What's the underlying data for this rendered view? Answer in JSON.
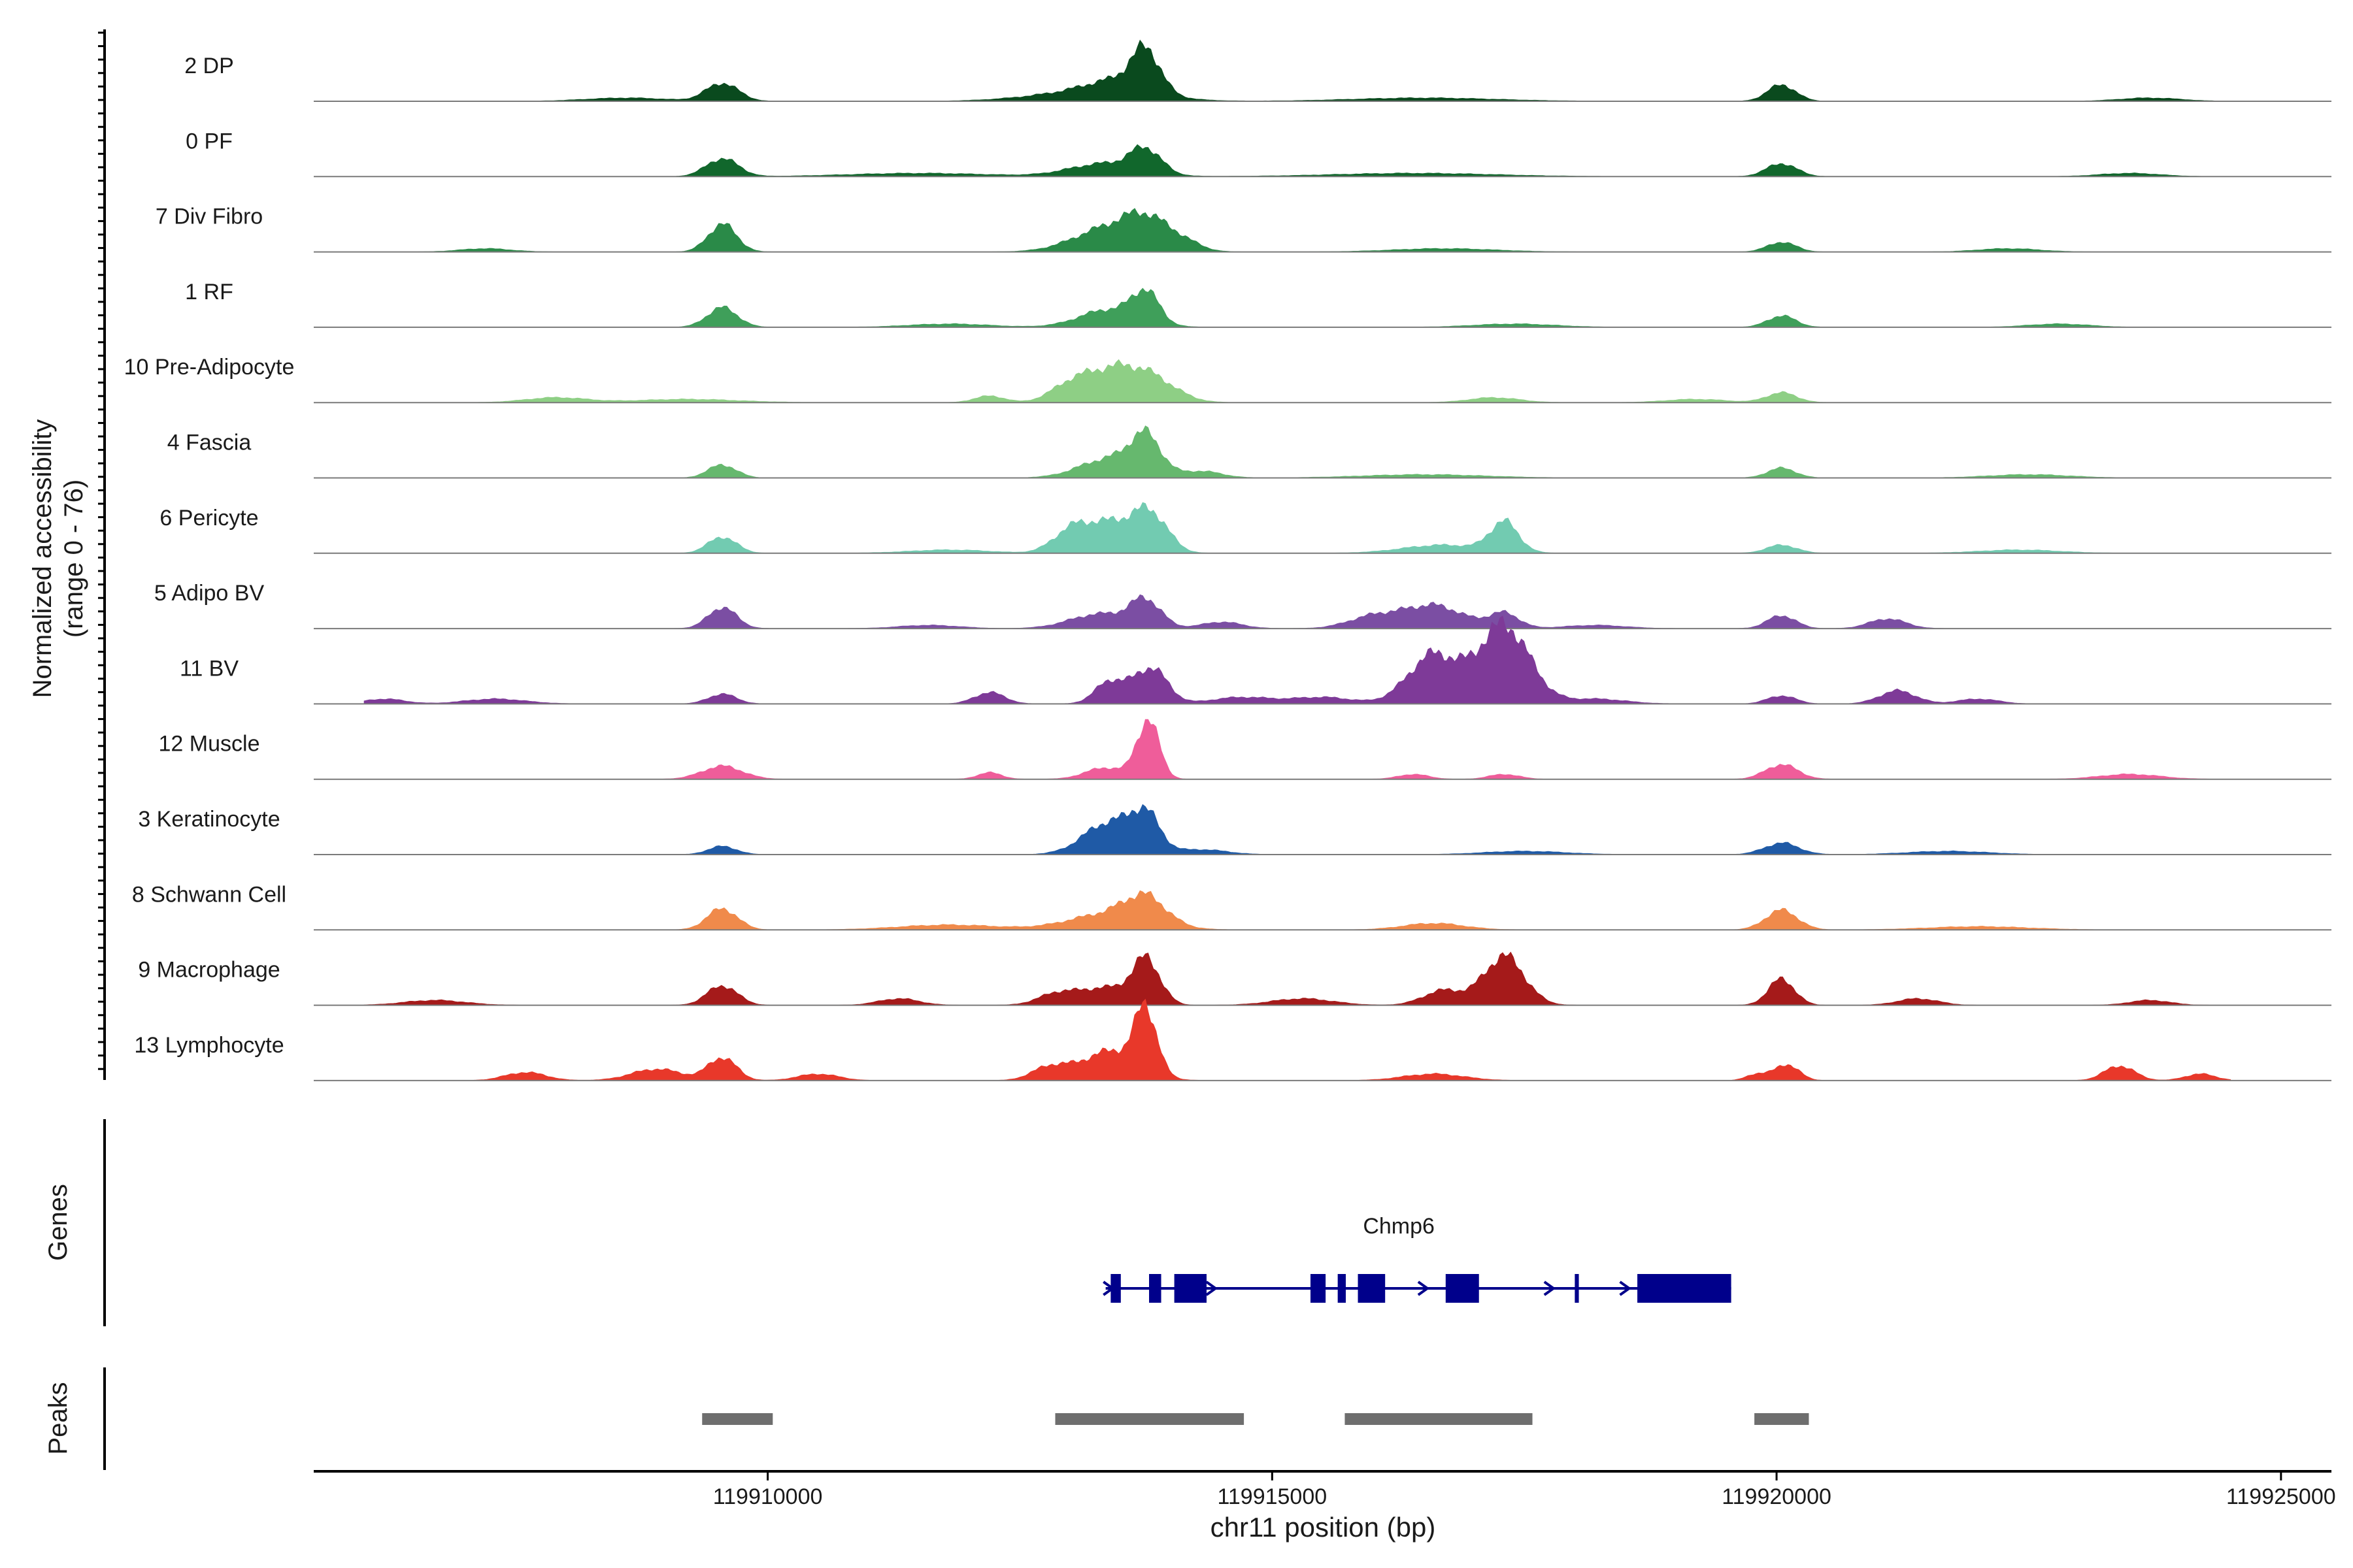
{
  "chart_data": {
    "type": "area",
    "ylabel_line1": "Normalized accessibility",
    "ylabel_line2": "(range 0 - 76)",
    "ylim": [
      0,
      76
    ],
    "xlabel": "chr11 position (bp)",
    "xlim": [
      119905500,
      119925500
    ],
    "x_ticks": [
      119910000,
      119915000,
      119920000,
      119925000
    ],
    "x_tick_labels": [
      "119910000",
      "119915000",
      "119920000",
      "119925000"
    ],
    "series": [
      {
        "name": "2 DP",
        "color": "#0a4a1e",
        "peaks": [
          [
            119909550,
            11,
            160
          ],
          [
            119913200,
            6,
            550
          ],
          [
            119913750,
            24,
            140
          ],
          [
            119913500,
            8,
            300
          ],
          [
            119920050,
            10,
            140
          ],
          [
            119908600,
            2,
            400
          ],
          [
            119916500,
            2,
            700
          ],
          [
            119923700,
            2,
            300
          ]
        ]
      },
      {
        "name": "0 PF",
        "color": "#11672c",
        "peaks": [
          [
            119909550,
            11,
            160
          ],
          [
            119913350,
            8,
            350
          ],
          [
            119913750,
            14,
            150
          ],
          [
            119920050,
            8,
            150
          ],
          [
            119911500,
            2,
            700
          ],
          [
            119916400,
            2,
            800
          ],
          [
            119923500,
            2,
            300
          ]
        ]
      },
      {
        "name": "7 Div Fibro",
        "color": "#2a8a48",
        "peaks": [
          [
            119909550,
            17,
            140
          ],
          [
            119913400,
            15,
            350
          ],
          [
            119913750,
            14,
            200
          ],
          [
            119914100,
            6,
            180
          ],
          [
            119920050,
            6,
            140
          ],
          [
            119907200,
            2,
            250
          ],
          [
            119916700,
            2,
            500
          ],
          [
            119922300,
            2,
            300
          ]
        ]
      },
      {
        "name": "1 RF",
        "color": "#3f9f5a",
        "peaks": [
          [
            119909550,
            12,
            150
          ],
          [
            119913400,
            11,
            300
          ],
          [
            119913750,
            18,
            130
          ],
          [
            119920050,
            7,
            140
          ],
          [
            119911800,
            2,
            400
          ],
          [
            119917400,
            2,
            400
          ],
          [
            119922800,
            2,
            300
          ]
        ]
      },
      {
        "name": "10 Pre-Adipocyte",
        "color": "#8ecf85",
        "peaks": [
          [
            119913000,
            10,
            200
          ],
          [
            119913400,
            17,
            250
          ],
          [
            119913800,
            14,
            250
          ],
          [
            119920050,
            6,
            150
          ],
          [
            119907900,
            3,
            300
          ],
          [
            119912200,
            4,
            150
          ],
          [
            119917200,
            3,
            250
          ],
          [
            119919200,
            2,
            300
          ],
          [
            119909200,
            2,
            500
          ]
        ]
      },
      {
        "name": "4 Fascia",
        "color": "#66b86e",
        "peaks": [
          [
            119909550,
            8,
            140
          ],
          [
            119913400,
            12,
            300
          ],
          [
            119913750,
            22,
            150
          ],
          [
            119914300,
            4,
            200
          ],
          [
            119920050,
            6,
            140
          ],
          [
            119916500,
            2,
            600
          ],
          [
            119922500,
            2,
            400
          ]
        ]
      },
      {
        "name": "6 Pericyte",
        "color": "#72cbb1",
        "peaks": [
          [
            119909550,
            10,
            140
          ],
          [
            119913000,
            12,
            180
          ],
          [
            119913400,
            18,
            250
          ],
          [
            119913800,
            22,
            170
          ],
          [
            119917300,
            18,
            140
          ],
          [
            119916700,
            5,
            400
          ],
          [
            119920050,
            5,
            150
          ],
          [
            119911800,
            2,
            400
          ],
          [
            119922400,
            2,
            400
          ]
        ]
      },
      {
        "name": "5 Adipo BV",
        "color": "#7b4ea3",
        "peaks": [
          [
            119909550,
            13,
            140
          ],
          [
            119913300,
            9,
            300
          ],
          [
            119913750,
            16,
            150
          ],
          [
            119914500,
            4,
            200
          ],
          [
            119916000,
            7,
            250
          ],
          [
            119916600,
            14,
            300
          ],
          [
            119917300,
            9,
            150
          ],
          [
            119920050,
            8,
            140
          ],
          [
            119921100,
            6,
            180
          ],
          [
            119918200,
            2,
            300
          ],
          [
            119911600,
            2,
            300
          ]
        ]
      },
      {
        "name": "11 BV",
        "color": "#7e3a98",
        "peaks": [
          [
            119917300,
            48,
            250
          ],
          [
            119916600,
            30,
            250
          ],
          [
            119913800,
            22,
            160
          ],
          [
            119913400,
            14,
            150
          ],
          [
            119912200,
            7,
            150
          ],
          [
            119909550,
            6,
            140
          ],
          [
            119921200,
            8,
            180
          ],
          [
            119920050,
            5,
            140
          ],
          [
            119914700,
            4,
            300
          ],
          [
            119915500,
            4,
            300
          ],
          [
            119906200,
            3,
            200
          ],
          [
            119907300,
            3,
            300
          ],
          [
            119918200,
            3,
            300
          ],
          [
            119922000,
            3,
            200
          ]
        ]
      },
      {
        "name": "12 Muscle",
        "color": "#ef5d9a",
        "peaks": [
          [
            119913770,
            36,
            110
          ],
          [
            119913350,
            7,
            200
          ],
          [
            119909550,
            8,
            200
          ],
          [
            119920050,
            9,
            160
          ],
          [
            119912200,
            4,
            120
          ],
          [
            119916400,
            3,
            150
          ],
          [
            119917300,
            3,
            150
          ],
          [
            119923500,
            3,
            300
          ]
        ]
      },
      {
        "name": "3 Keratinocyte",
        "color": "#1f5aa6",
        "peaks": [
          [
            119913400,
            20,
            260
          ],
          [
            119913750,
            20,
            140
          ],
          [
            119909550,
            5,
            140
          ],
          [
            119920050,
            7,
            170
          ],
          [
            119914300,
            3,
            250
          ],
          [
            119917500,
            2,
            400
          ],
          [
            119921700,
            2,
            400
          ]
        ]
      },
      {
        "name": "8 Schwann Cell",
        "color": "#f08a4b",
        "peaks": [
          [
            119909550,
            13,
            150
          ],
          [
            119913400,
            10,
            400
          ],
          [
            119913750,
            15,
            200
          ],
          [
            119920050,
            12,
            160
          ],
          [
            119916600,
            4,
            300
          ],
          [
            119911800,
            3,
            500
          ],
          [
            119922000,
            2,
            500
          ]
        ]
      },
      {
        "name": "9 Macrophage",
        "color": "#a51a1a",
        "peaks": [
          [
            119913750,
            28,
            140
          ],
          [
            119913350,
            10,
            200
          ],
          [
            119912900,
            8,
            200
          ],
          [
            119909550,
            12,
            150
          ],
          [
            119917300,
            30,
            200
          ],
          [
            119916700,
            9,
            200
          ],
          [
            119920050,
            16,
            130
          ],
          [
            119921400,
            4,
            200
          ],
          [
            119911300,
            4,
            200
          ],
          [
            119915300,
            4,
            300
          ],
          [
            119906700,
            3,
            300
          ],
          [
            119923700,
            3,
            200
          ]
        ]
      },
      {
        "name": "13 Lymphocyte",
        "color": "#e8382a",
        "peaks": [
          [
            119913750,
            38,
            110
          ],
          [
            119913400,
            18,
            280
          ],
          [
            119912800,
            8,
            180
          ],
          [
            119909550,
            14,
            140
          ],
          [
            119908900,
            7,
            250
          ],
          [
            119920100,
            10,
            120
          ],
          [
            119923400,
            9,
            150
          ],
          [
            119907600,
            5,
            200
          ],
          [
            119910500,
            4,
            200
          ],
          [
            119916600,
            4,
            300
          ],
          [
            119924200,
            4,
            150
          ],
          [
            119919800,
            4,
            100
          ]
        ]
      }
    ],
    "genes_label": "Genes",
    "gene": {
      "name": "Chmp6",
      "start": 119913350,
      "end": 119919550,
      "strand": "+",
      "exons": [
        [
          119913400,
          119913500
        ],
        [
          119913780,
          119913900
        ],
        [
          119914030,
          119914350
        ],
        [
          119915380,
          119915530
        ],
        [
          119915650,
          119915730
        ],
        [
          119915850,
          119916120
        ],
        [
          119916720,
          119917050
        ],
        [
          119918000,
          119918040
        ],
        [
          119918620,
          119919550
        ]
      ]
    },
    "peaks_label": "Peaks",
    "peak_regions": [
      [
        119909350,
        119910050
      ],
      [
        119912850,
        119914720
      ],
      [
        119915720,
        119917580
      ],
      [
        119919780,
        119920320
      ]
    ]
  }
}
